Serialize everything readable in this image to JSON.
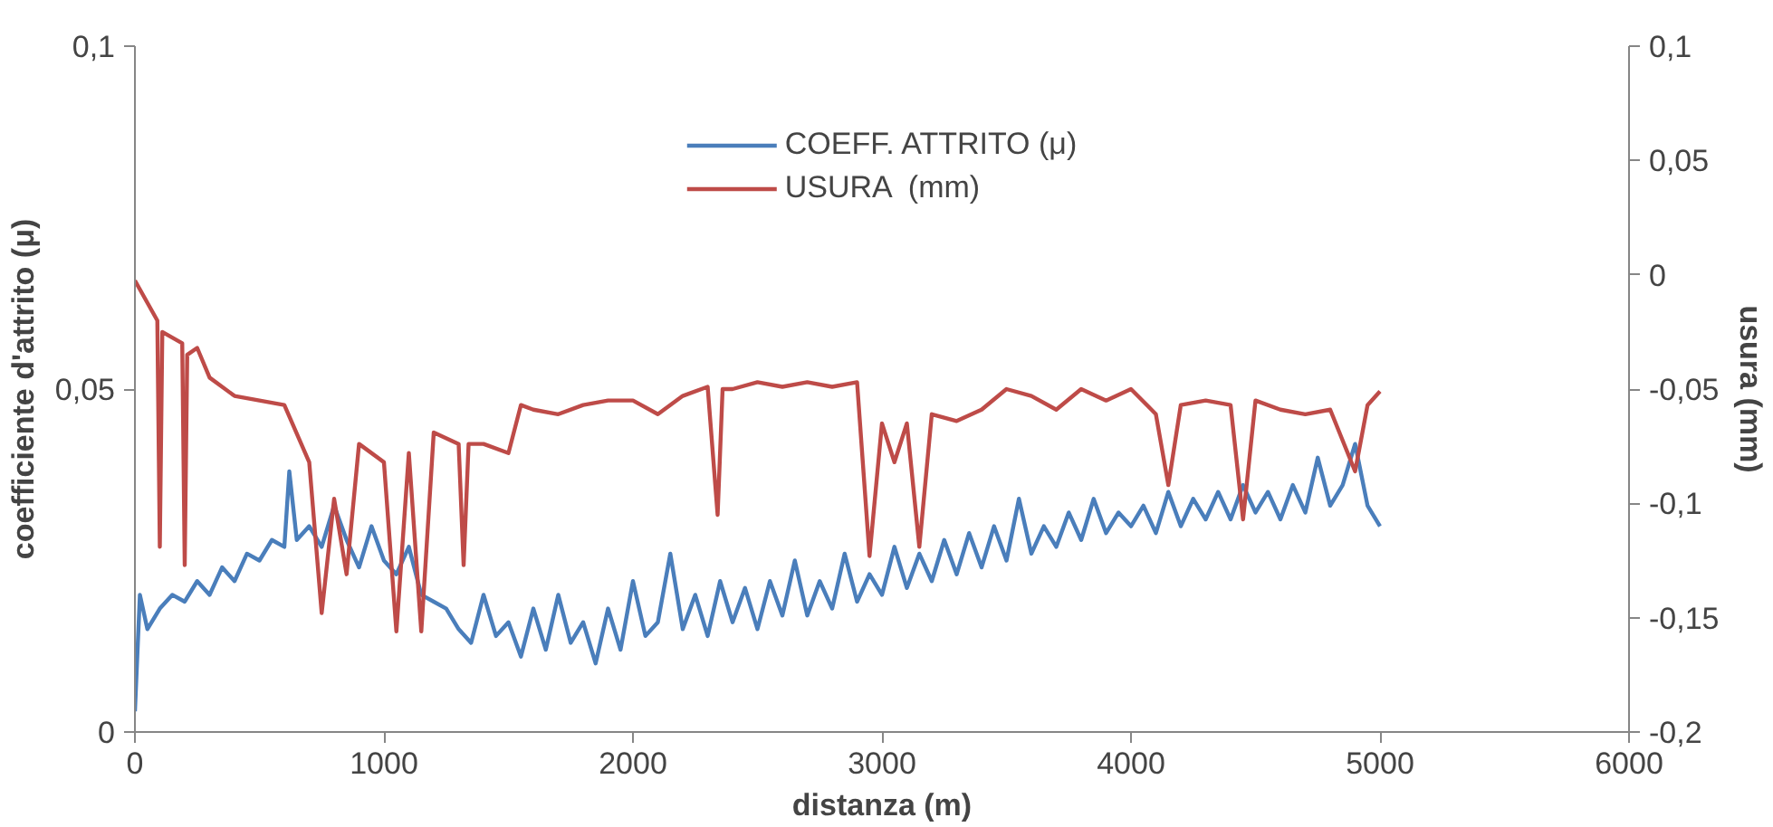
{
  "chart_data": {
    "type": "line",
    "xlabel": "distanza (m)",
    "ylabel": "coefficiente d'attrito (μ)",
    "y2label": "usura (mm)",
    "xlim": [
      0,
      6000
    ],
    "xticks": [
      0,
      1000,
      2000,
      3000,
      4000,
      5000,
      6000
    ],
    "ylim": [
      0,
      0.1
    ],
    "yticks": [
      {
        "value": 0,
        "label": "0"
      },
      {
        "value": 0.05,
        "label": "0,05"
      },
      {
        "value": 0.1,
        "label": "0,1"
      }
    ],
    "y2lim": [
      -0.2,
      0.1
    ],
    "y2ticks": [
      {
        "value": -0.2,
        "label": "-0,2"
      },
      {
        "value": -0.15,
        "label": "-0,15"
      },
      {
        "value": -0.1,
        "label": "-0,1"
      },
      {
        "value": -0.05,
        "label": "-0,05"
      },
      {
        "value": 0,
        "label": "0"
      },
      {
        "value": 0.05,
        "label": "0,05"
      },
      {
        "value": 0.1,
        "label": "0,1"
      }
    ],
    "grid": false,
    "legend": "top",
    "marker": "none",
    "line_style": "solid",
    "series": [
      {
        "name": "COEFF. ATTRITO (μ)",
        "color": "#4a7ebb",
        "x": [
          0,
          20,
          50,
          100,
          150,
          200,
          250,
          300,
          350,
          400,
          450,
          500,
          550,
          600,
          620,
          650,
          700,
          750,
          800,
          850,
          900,
          950,
          1000,
          1050,
          1100,
          1150,
          1200,
          1250,
          1300,
          1350,
          1400,
          1450,
          1500,
          1550,
          1600,
          1650,
          1700,
          1750,
          1800,
          1850,
          1900,
          1950,
          2000,
          2050,
          2100,
          2150,
          2200,
          2250,
          2300,
          2350,
          2400,
          2450,
          2500,
          2550,
          2600,
          2650,
          2700,
          2750,
          2800,
          2850,
          2900,
          2950,
          3000,
          3050,
          3100,
          3150,
          3200,
          3250,
          3300,
          3350,
          3400,
          3450,
          3500,
          3550,
          3600,
          3650,
          3700,
          3750,
          3800,
          3850,
          3900,
          3950,
          4000,
          4050,
          4100,
          4150,
          4200,
          4250,
          4300,
          4350,
          4400,
          4450,
          4500,
          4550,
          4600,
          4650,
          4700,
          4750,
          4800,
          4850,
          4900,
          4950,
          5000
        ],
        "values": [
          0.003,
          0.02,
          0.015,
          0.018,
          0.02,
          0.019,
          0.022,
          0.02,
          0.024,
          0.022,
          0.026,
          0.025,
          0.028,
          0.027,
          0.038,
          0.028,
          0.03,
          0.027,
          0.033,
          0.028,
          0.024,
          0.03,
          0.025,
          0.023,
          0.027,
          0.02,
          0.019,
          0.018,
          0.015,
          0.013,
          0.02,
          0.014,
          0.016,
          0.011,
          0.018,
          0.012,
          0.02,
          0.013,
          0.016,
          0.01,
          0.018,
          0.012,
          0.022,
          0.014,
          0.016,
          0.026,
          0.015,
          0.02,
          0.014,
          0.022,
          0.016,
          0.021,
          0.015,
          0.022,
          0.017,
          0.025,
          0.017,
          0.022,
          0.018,
          0.026,
          0.019,
          0.023,
          0.02,
          0.027,
          0.021,
          0.026,
          0.022,
          0.028,
          0.023,
          0.029,
          0.024,
          0.03,
          0.025,
          0.034,
          0.026,
          0.03,
          0.027,
          0.032,
          0.028,
          0.034,
          0.029,
          0.032,
          0.03,
          0.033,
          0.029,
          0.035,
          0.03,
          0.034,
          0.031,
          0.035,
          0.031,
          0.036,
          0.032,
          0.035,
          0.031,
          0.036,
          0.032,
          0.04,
          0.033,
          0.036,
          0.042,
          0.033,
          0.03
        ]
      },
      {
        "name": "USURA  (mm)",
        "color": "#be4b48",
        "axis": "y2",
        "x": [
          0,
          90,
          100,
          110,
          190,
          200,
          210,
          250,
          300,
          400,
          500,
          600,
          700,
          750,
          800,
          850,
          900,
          1000,
          1050,
          1100,
          1150,
          1200,
          1300,
          1320,
          1340,
          1400,
          1500,
          1550,
          1600,
          1700,
          1800,
          1900,
          2000,
          2100,
          2200,
          2300,
          2340,
          2360,
          2400,
          2500,
          2600,
          2700,
          2800,
          2900,
          2950,
          3000,
          3050,
          3100,
          3150,
          3200,
          3300,
          3400,
          3500,
          3600,
          3700,
          3800,
          3900,
          4000,
          4100,
          4150,
          4200,
          4300,
          4400,
          4450,
          4500,
          4600,
          4700,
          4800,
          4900,
          4950,
          5000
        ],
        "values": [
          -0.0025,
          -0.02,
          -0.119,
          -0.025,
          -0.03,
          -0.127,
          -0.035,
          -0.032,
          -0.045,
          -0.053,
          -0.055,
          -0.057,
          -0.082,
          -0.148,
          -0.098,
          -0.131,
          -0.074,
          -0.082,
          -0.156,
          -0.078,
          -0.156,
          -0.069,
          -0.074,
          -0.127,
          -0.074,
          -0.074,
          -0.078,
          -0.057,
          -0.059,
          -0.061,
          -0.057,
          -0.055,
          -0.055,
          -0.061,
          -0.053,
          -0.049,
          -0.105,
          -0.05,
          -0.05,
          -0.047,
          -0.049,
          -0.047,
          -0.049,
          -0.047,
          -0.123,
          -0.065,
          -0.082,
          -0.065,
          -0.119,
          -0.061,
          -0.064,
          -0.059,
          -0.05,
          -0.053,
          -0.059,
          -0.05,
          -0.055,
          -0.05,
          -0.061,
          -0.092,
          -0.057,
          -0.055,
          -0.057,
          -0.107,
          -0.055,
          -0.059,
          -0.061,
          -0.059,
          -0.086,
          -0.057,
          -0.051
        ]
      }
    ]
  }
}
